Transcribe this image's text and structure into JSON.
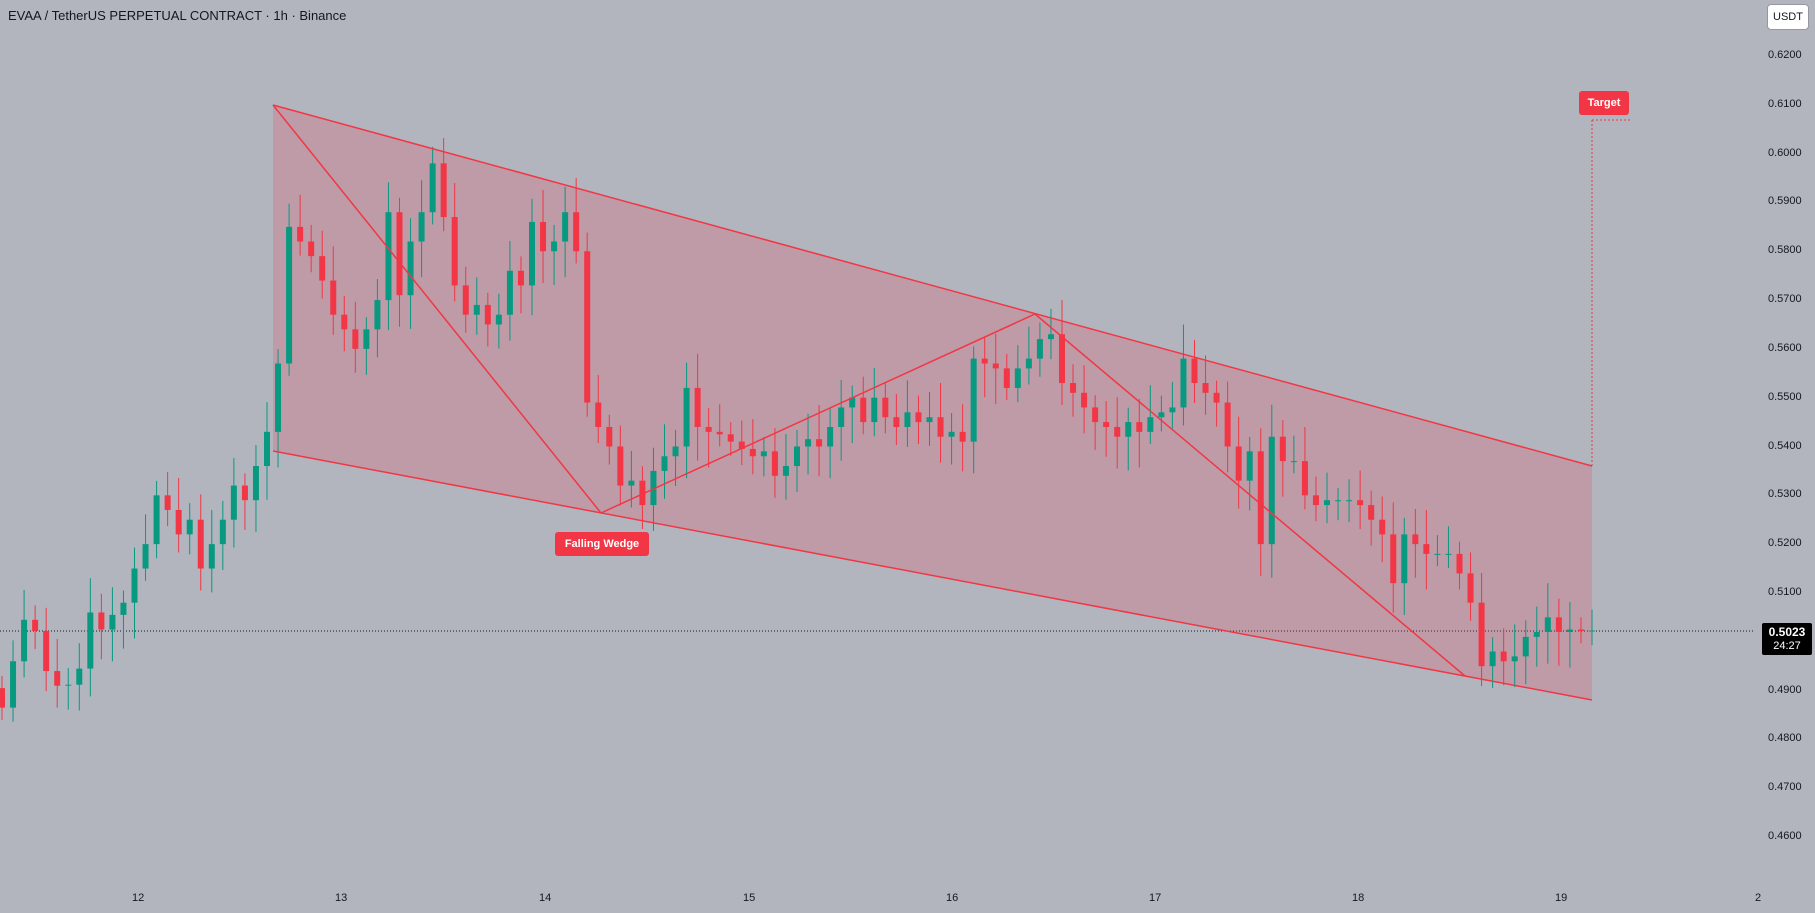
{
  "header": {
    "title": "EVAA / TetherUS PERPETUAL CONTRACT · 1h · Binance",
    "currency_button": "USDT"
  },
  "price_label": {
    "price": "0.5023",
    "countdown": "24:27"
  },
  "annotations": {
    "pattern_label": "Falling Wedge",
    "target_label": "Target"
  },
  "colors": {
    "background": "#b2b5be",
    "up_candle": "#089981",
    "down_candle": "#f23645",
    "pattern_line": "#f23645",
    "pattern_fill": "#f23645"
  },
  "chart_data": {
    "type": "candlestick",
    "title": "EVAA / TetherUS PERPETUAL CONTRACT · 1h · Binance",
    "x_tick_labels": [
      "12",
      "13",
      "14",
      "15",
      "16",
      "17",
      "18",
      "19",
      "2"
    ],
    "y_tick_labels": [
      "0.6200",
      "0.6100",
      "0.6000",
      "0.5900",
      "0.5800",
      "0.5700",
      "0.5600",
      "0.5500",
      "0.5400",
      "0.5300",
      "0.5200",
      "0.5100",
      "0.4900",
      "0.4800",
      "0.4700",
      "0.4600"
    ],
    "ylim": [
      0.4555,
      0.6255
    ],
    "current_price": 0.5023,
    "grid": false,
    "candles_close": [
      0.4865,
      0.496,
      0.5045,
      0.5022,
      0.494,
      0.491,
      0.4912,
      0.4945,
      0.506,
      0.5025,
      0.5055,
      0.508,
      0.515,
      0.52,
      0.53,
      0.527,
      0.522,
      0.525,
      0.515,
      0.52,
      0.525,
      0.532,
      0.529,
      0.536,
      0.543,
      0.557,
      0.585,
      0.582,
      0.579,
      0.574,
      0.567,
      0.564,
      0.56,
      0.564,
      0.57,
      0.588,
      0.571,
      0.582,
      0.588,
      0.598,
      0.587,
      0.573,
      0.567,
      0.569,
      0.565,
      0.567,
      0.576,
      0.573,
      0.586,
      0.58,
      0.582,
      0.588,
      0.58,
      0.549,
      0.544,
      0.54,
      0.532,
      0.533,
      0.528,
      0.535,
      0.538,
      0.54,
      0.552,
      0.544,
      0.543,
      0.5425,
      0.541,
      0.5395,
      0.538,
      0.539,
      0.534,
      0.536,
      0.54,
      0.5415,
      0.54,
      0.544,
      0.548,
      0.55,
      0.545,
      0.55,
      0.546,
      0.544,
      0.547,
      0.545,
      0.546,
      0.542,
      0.543,
      0.541,
      0.558,
      0.557,
      0.556,
      0.552,
      0.556,
      0.558,
      0.562,
      0.563,
      0.553,
      0.551,
      0.548,
      0.545,
      0.544,
      0.542,
      0.545,
      0.543,
      0.546,
      0.547,
      0.548,
      0.558,
      0.553,
      0.551,
      0.549,
      0.54,
      0.533,
      0.539,
      0.52,
      0.542,
      0.537,
      0.537,
      0.53,
      0.528,
      0.529,
      0.529,
      0.529,
      0.528,
      0.525,
      0.522,
      0.512,
      0.522,
      0.52,
      0.518,
      0.518,
      0.518,
      0.514,
      0.508,
      0.495,
      0.498,
      0.496,
      0.497,
      0.501,
      0.502,
      0.505,
      0.502,
      0.5025,
      0.5022,
      0.5023
    ],
    "overlays": {
      "pattern": "Falling Wedge",
      "upper_trendline": [
        [
          12.66,
          0.61
        ],
        [
          19.16,
          0.536
        ]
      ],
      "lower_trendline": [
        [
          12.66,
          0.539
        ],
        [
          19.16,
          0.488
        ]
      ],
      "zigzag": [
        [
          12.66,
          0.61
        ],
        [
          14.3,
          0.5265
        ],
        [
          16.42,
          0.567
        ],
        [
          18.55,
          0.493
        ]
      ],
      "target_price": 0.607
    }
  }
}
